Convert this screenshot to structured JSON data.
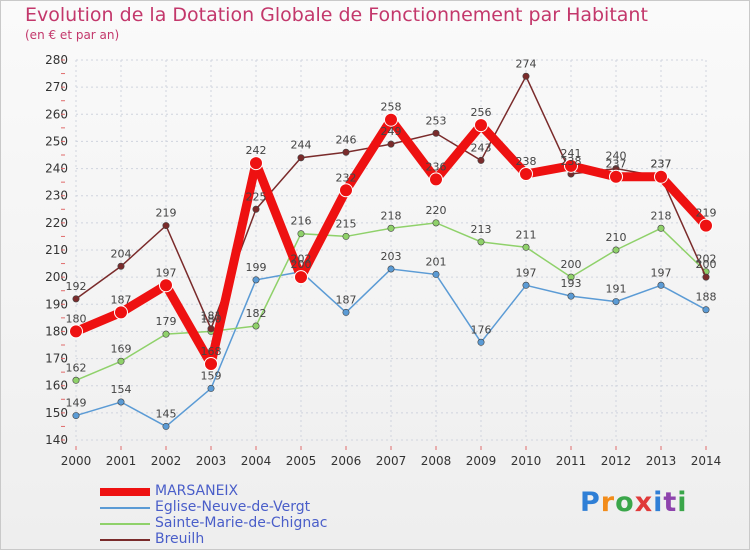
{
  "title": "Evolution de la Dotation Globale de Fonctionnement par Habitant",
  "subtitle": "(en € et par an)",
  "logo_text": "Proxiti",
  "colors": {
    "title": "#c3376b",
    "axis_text": "#333333",
    "grid": "#cfd4de",
    "legend_text": "#4a5ec9"
  },
  "chart_data": {
    "type": "line",
    "title": "Evolution de la Dotation Globale de Fonctionnement par Habitant",
    "subtitle": "(en € et par an)",
    "xlabel": "",
    "ylabel": "",
    "ylim": [
      140,
      280
    ],
    "y_ticks": [
      140,
      150,
      160,
      170,
      180,
      190,
      200,
      210,
      220,
      230,
      240,
      250,
      260,
      270,
      280
    ],
    "categories": [
      "2000",
      "2001",
      "2002",
      "2003",
      "2004",
      "2005",
      "2006",
      "2007",
      "2008",
      "2009",
      "2010",
      "2011",
      "2012",
      "2013",
      "2014"
    ],
    "grid": true,
    "legend_position": "bottom-left",
    "series": [
      {
        "name": "MARSANEIX",
        "color": "#ee1111",
        "emphasis": true,
        "values": [
          180,
          187,
          197,
          168,
          242,
          200,
          232,
          258,
          236,
          256,
          238,
          241,
          237,
          237,
          219
        ]
      },
      {
        "name": "Eglise-Neuve-de-Vergt",
        "color": "#5b9bd5",
        "values": [
          149,
          154,
          145,
          159,
          199,
          202,
          187,
          203,
          201,
          176,
          197,
          193,
          191,
          197,
          188
        ]
      },
      {
        "name": "Sainte-Marie-de-Chignac",
        "color": "#8fd16a",
        "values": [
          162,
          169,
          179,
          180,
          182,
          216,
          215,
          218,
          220,
          213,
          211,
          200,
          210,
          218,
          202
        ]
      },
      {
        "name": "Breuilh",
        "color": "#7a2b2b",
        "values": [
          192,
          204,
          219,
          181,
          225,
          244,
          246,
          249,
          253,
          243,
          274,
          238,
          240,
          237,
          200
        ]
      }
    ]
  }
}
